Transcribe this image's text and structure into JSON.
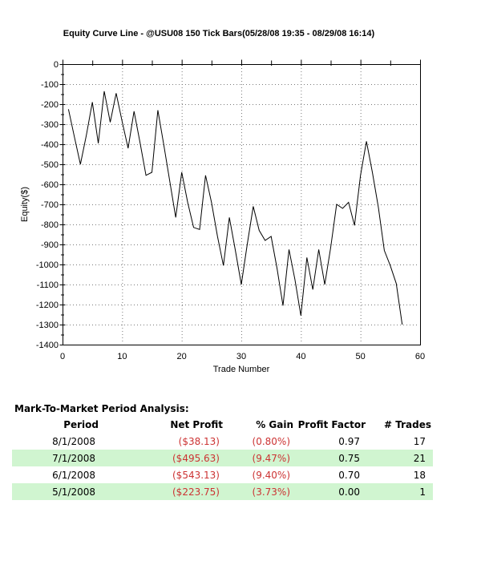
{
  "chart_data": {
    "type": "line",
    "title": "Equity Curve Line - @USU08 150 Tick Bars(05/28/08 19:35 - 08/29/08 16:14)",
    "xlabel": "Trade Number",
    "ylabel": "Equity($)",
    "xlim": [
      0,
      60
    ],
    "ylim": [
      -1400,
      0
    ],
    "x_tick_step": 10,
    "x_minor_tick_step": 5,
    "y_tick_step": 100,
    "y_minor_tick_step": 50,
    "grid": "dotted",
    "legend": "none",
    "line_color": "#000000",
    "grid_color": "#7a7a7a",
    "first_trade": 1,
    "equity": [
      -225,
      -365,
      -500,
      -355,
      -190,
      -395,
      -135,
      -290,
      -145,
      -285,
      -420,
      -235,
      -390,
      -555,
      -540,
      -230,
      -405,
      -585,
      -765,
      -540,
      -690,
      -815,
      -825,
      -555,
      -690,
      -860,
      -1005,
      -765,
      -930,
      -1100,
      -900,
      -710,
      -830,
      -880,
      -860,
      -1020,
      -1205,
      -925,
      -1075,
      -1255,
      -965,
      -1125,
      -925,
      -1100,
      -915,
      -700,
      -720,
      -690,
      -805,
      -555,
      -385,
      -540,
      -715,
      -930,
      -1005,
      -1095,
      -1300
    ]
  },
  "analysis": {
    "heading": "Mark-To-Market Period Analysis:",
    "columns": [
      "Period",
      "Net Profit",
      "% Gain",
      "Profit Factor",
      "# Trades"
    ],
    "rows": [
      {
        "period": "8/1/2008",
        "net_profit": "($38.13)",
        "gain": "(0.80%)",
        "profit_factor": "0.97",
        "trades": "17",
        "highlight": false
      },
      {
        "period": "7/1/2008",
        "net_profit": "($495.63)",
        "gain": "(9.47%)",
        "profit_factor": "0.75",
        "trades": "21",
        "highlight": true
      },
      {
        "period": "6/1/2008",
        "net_profit": "($543.13)",
        "gain": "(9.40%)",
        "profit_factor": "0.70",
        "trades": "18",
        "highlight": false
      },
      {
        "period": "5/1/2008",
        "net_profit": "($223.75)",
        "gain": "(3.73%)",
        "profit_factor": "0.00",
        "trades": "1",
        "highlight": true
      }
    ],
    "colors": {
      "highlight_row": "#d0f5d0",
      "negative_text": "#cc3333",
      "header_text": "#000000"
    }
  }
}
